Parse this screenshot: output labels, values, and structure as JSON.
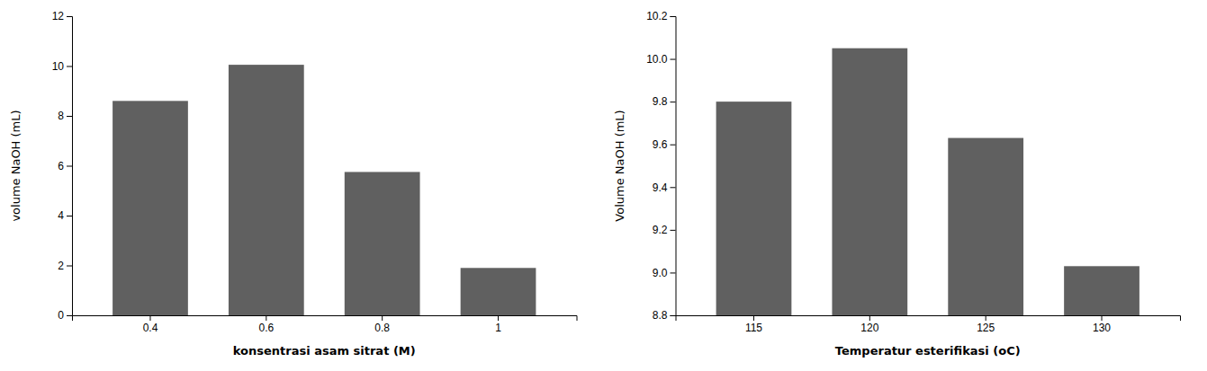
{
  "chart_data": [
    {
      "type": "bar",
      "categories": [
        "0.4",
        "0.6",
        "0.8",
        "1"
      ],
      "values": [
        8.6,
        10.05,
        5.75,
        1.9
      ],
      "color": "#606060",
      "xlabel": "konsentrasi asam sitrat (M)",
      "ylabel": "volume NaOH (mL)",
      "ylim": [
        0,
        12
      ],
      "yticks": [
        0,
        2,
        4,
        6,
        8,
        10,
        12
      ],
      "grid": false
    },
    {
      "type": "bar",
      "categories": [
        "115",
        "120",
        "125",
        "130"
      ],
      "values": [
        9.8,
        10.05,
        9.63,
        9.03
      ],
      "color": "#606060",
      "xlabel": "Temperatur esterifikasi (oC)",
      "ylabel": "Volume NaOH (mL)",
      "ylim": [
        8.8,
        10.2
      ],
      "yticks": [
        8.8,
        {
          "value": 9,
          "label": "9.0"
        },
        9.2,
        9.4,
        9.6,
        9.8,
        {
          "value": 10,
          "label": "10.0"
        },
        10.2
      ],
      "grid": false
    }
  ]
}
